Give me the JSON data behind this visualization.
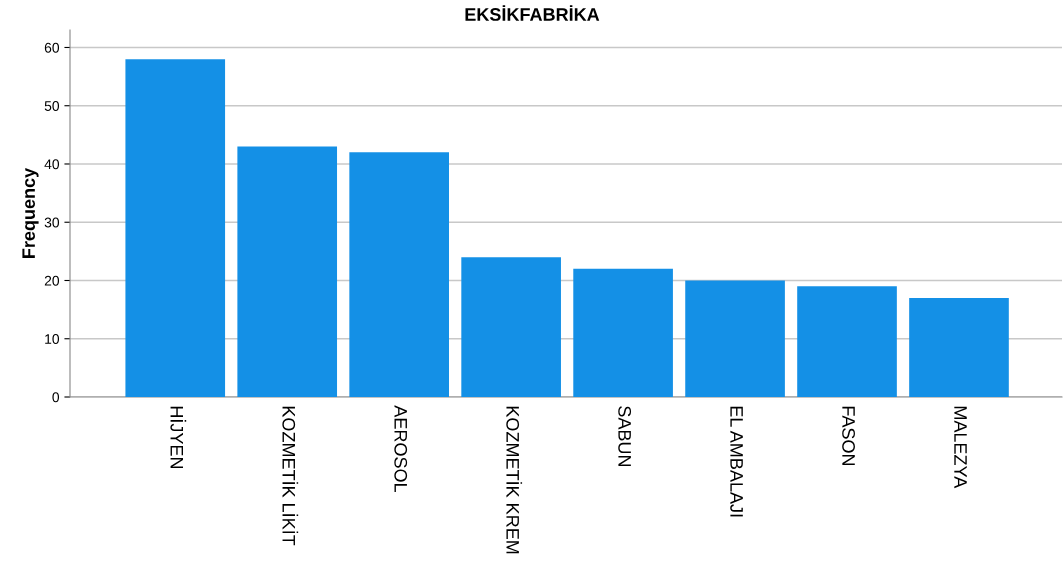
{
  "chart_data": {
    "type": "bar",
    "title": "EKSİKFABRİKA",
    "ylabel": "Frequency",
    "categories": [
      "HİJYEN",
      "KOZMETİK LİKİT",
      "AEROSOL",
      "KOZMETİK KREM",
      "SABUN",
      "EL AMBALAJI",
      "FASON",
      "MALEZYA"
    ],
    "values": [
      58,
      43,
      42,
      24,
      22,
      20,
      19,
      17
    ],
    "color": "#1490e6",
    "ylim": [
      0,
      63
    ],
    "yticks": [
      0,
      10,
      20,
      30,
      40,
      50,
      60
    ],
    "grid": "y"
  }
}
